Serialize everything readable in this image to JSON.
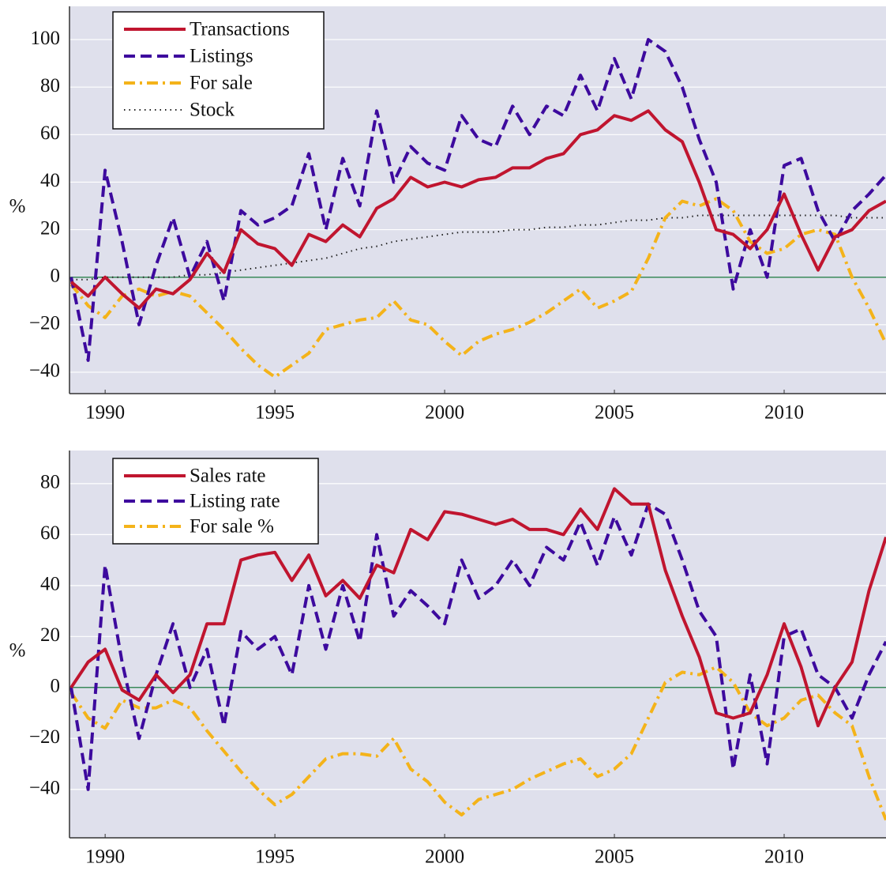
{
  "chart_data": [
    {
      "type": "line",
      "ylabel": "%",
      "legend": "upper left",
      "grid": true,
      "xlim": [
        1988.95,
        2013.0
      ],
      "xticks": [
        1990,
        1995,
        2000,
        2005,
        2010
      ],
      "ylim": [
        -49,
        114
      ],
      "yticks": [
        {
          "value": -40,
          "label": "−40"
        },
        {
          "value": -20,
          "label": "−20"
        },
        0,
        20,
        40,
        60,
        80,
        100
      ],
      "hline": {
        "y": 0,
        "color": "#3a8a5a"
      },
      "x": [
        1989.0,
        1989.5,
        1990.0,
        1990.5,
        1991.0,
        1991.5,
        1992.0,
        1992.5,
        1993.0,
        1993.5,
        1994.0,
        1994.5,
        1995.0,
        1995.5,
        1996.0,
        1996.5,
        1997.0,
        1997.5,
        1998.0,
        1998.5,
        1999.0,
        1999.5,
        2000.0,
        2000.5,
        2001.0,
        2001.5,
        2002.0,
        2002.5,
        2003.0,
        2003.5,
        2004.0,
        2004.5,
        2005.0,
        2005.5,
        2006.0,
        2006.5,
        2007.0,
        2007.5,
        2008.0,
        2008.5,
        2009.0,
        2009.5,
        2010.0,
        2010.5,
        2011.0,
        2011.5,
        2012.0,
        2012.5,
        2013.0
      ],
      "series": [
        {
          "name": "Transactions",
          "color": "#c0152f",
          "style": "solid",
          "values": [
            -2,
            -8,
            0,
            -7,
            -13,
            -5,
            -7,
            -1,
            10,
            2,
            20,
            14,
            12,
            5,
            18,
            15,
            22,
            17,
            29,
            33,
            42,
            38,
            40,
            38,
            41,
            42,
            46,
            46,
            50,
            52,
            60,
            62,
            68,
            66,
            70,
            62,
            57,
            40,
            20,
            18,
            12,
            20,
            35,
            18,
            3,
            17,
            20,
            28,
            32
          ]
        },
        {
          "name": "Listings",
          "color": "#3d0a9e",
          "style": "dashed",
          "values": [
            0,
            -35,
            45,
            15,
            -20,
            5,
            25,
            0,
            15,
            -10,
            28,
            22,
            25,
            30,
            52,
            20,
            50,
            30,
            70,
            40,
            55,
            48,
            45,
            68,
            58,
            55,
            72,
            60,
            72,
            68,
            85,
            70,
            92,
            75,
            100,
            95,
            80,
            58,
            40,
            -5,
            20,
            0,
            47,
            50,
            28,
            15,
            28,
            35,
            43
          ]
        },
        {
          "name": "For sale",
          "color": "#f4b31a",
          "style": "dashdot",
          "values": [
            -3,
            -12,
            -17,
            -8,
            -5,
            -8,
            -6,
            -8,
            -15,
            -22,
            -30,
            -37,
            -42,
            -37,
            -32,
            -22,
            -20,
            -18,
            -17,
            -10,
            -18,
            -20,
            -27,
            -33,
            -27,
            -24,
            -22,
            -19,
            -15,
            -10,
            -5,
            -13,
            -10,
            -6,
            8,
            25,
            32,
            30,
            33,
            28,
            15,
            10,
            12,
            18,
            20,
            18,
            0,
            -13,
            -28
          ]
        },
        {
          "name": "Stock",
          "color": "#222222",
          "style": "dotted",
          "values": [
            -1,
            -1,
            0,
            0,
            0,
            0,
            0,
            1,
            1,
            2,
            3,
            4,
            5,
            6,
            7,
            8,
            10,
            12,
            13,
            15,
            16,
            17,
            18,
            19,
            19,
            19,
            20,
            20,
            21,
            21,
            22,
            22,
            23,
            24,
            24,
            25,
            25,
            26,
            26,
            26,
            26,
            26,
            26,
            26,
            26,
            26,
            25,
            25,
            25
          ]
        }
      ]
    },
    {
      "type": "line",
      "ylabel": "%",
      "legend": "upper left",
      "grid": true,
      "xlim": [
        1988.95,
        2013.0
      ],
      "xticks": [
        1990,
        1995,
        2000,
        2005,
        2010
      ],
      "ylim": [
        -59,
        93
      ],
      "yticks": [
        {
          "value": -40,
          "label": "−40"
        },
        {
          "value": -20,
          "label": "−20"
        },
        0,
        20,
        40,
        60,
        80
      ],
      "hline": {
        "y": 0,
        "color": "#3a8a5a"
      },
      "x": [
        1989.0,
        1989.5,
        1990.0,
        1990.5,
        1991.0,
        1991.5,
        1992.0,
        1992.5,
        1993.0,
        1993.5,
        1994.0,
        1994.5,
        1995.0,
        1995.5,
        1996.0,
        1996.5,
        1997.0,
        1997.5,
        1998.0,
        1998.5,
        1999.0,
        1999.5,
        2000.0,
        2000.5,
        2001.0,
        2001.5,
        2002.0,
        2002.5,
        2003.0,
        2003.5,
        2004.0,
        2004.5,
        2005.0,
        2005.5,
        2006.0,
        2006.5,
        2007.0,
        2007.5,
        2008.0,
        2008.5,
        2009.0,
        2009.5,
        2010.0,
        2010.5,
        2011.0,
        2011.5,
        2012.0,
        2012.5,
        2013.0
      ],
      "series": [
        {
          "name": "Sales rate",
          "color": "#c0152f",
          "style": "solid",
          "values": [
            0,
            10,
            15,
            -1,
            -5,
            5,
            -2,
            5,
            25,
            25,
            50,
            52,
            53,
            42,
            52,
            36,
            42,
            35,
            48,
            45,
            62,
            58,
            69,
            68,
            66,
            64,
            66,
            62,
            62,
            60,
            70,
            62,
            78,
            72,
            72,
            46,
            28,
            12,
            -10,
            -12,
            -10,
            5,
            25,
            8,
            -15,
            0,
            10,
            38,
            59
          ]
        },
        {
          "name": "Listing rate",
          "color": "#3d0a9e",
          "style": "dashed",
          "values": [
            0,
            -40,
            48,
            10,
            -20,
            5,
            25,
            0,
            15,
            -15,
            22,
            15,
            20,
            5,
            40,
            15,
            40,
            18,
            60,
            28,
            38,
            32,
            25,
            50,
            35,
            40,
            50,
            40,
            55,
            50,
            65,
            48,
            67,
            52,
            72,
            68,
            50,
            30,
            20,
            -32,
            5,
            -30,
            20,
            23,
            5,
            0,
            -12,
            5,
            18
          ]
        },
        {
          "name": "For sale %",
          "color": "#f4b31a",
          "style": "dashdot",
          "values": [
            -2,
            -12,
            -16,
            -5,
            -8,
            -8,
            -5,
            -8,
            -17,
            -25,
            -33,
            -40,
            -46,
            -42,
            -35,
            -28,
            -26,
            -26,
            -27,
            -20,
            -32,
            -37,
            -45,
            -50,
            -44,
            -42,
            -40,
            -36,
            -33,
            -30,
            -28,
            -35,
            -32,
            -26,
            -12,
            2,
            6,
            5,
            8,
            2,
            -10,
            -15,
            -12,
            -5,
            -3,
            -10,
            -15,
            -35,
            -52
          ]
        }
      ]
    }
  ]
}
